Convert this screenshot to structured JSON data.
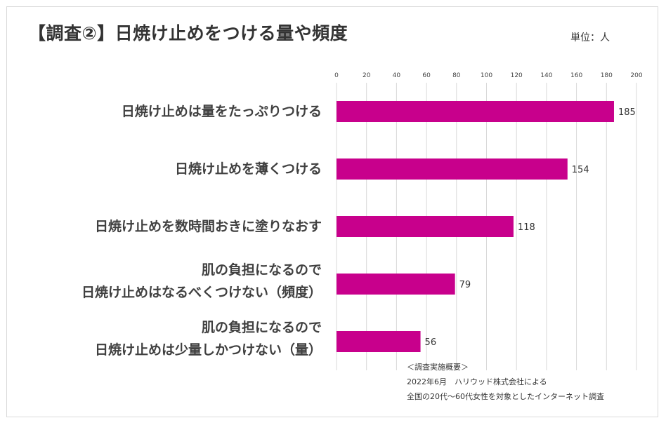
{
  "title": "【調査②】日焼け止めをつける量や頻度",
  "unit_label": "単位：人",
  "colors": {
    "bar": "#c8008c",
    "grid": "#d9d9d9",
    "text": "#404040"
  },
  "chart_data": {
    "type": "bar",
    "orientation": "horizontal",
    "title": "【調査②】日焼け止めをつける量や頻度",
    "xlim": [
      0,
      200
    ],
    "x_ticks": [
      0,
      20,
      40,
      60,
      80,
      100,
      120,
      140,
      160,
      180,
      200
    ],
    "x_axis_position": "top",
    "grid": true,
    "categories": [
      [
        "日焼け止めは量をたっぷりつける"
      ],
      [
        "日焼け止めを薄くつける"
      ],
      [
        "日焼け止めを数時間おきに塗りなおす"
      ],
      [
        "肌の負担になるので",
        "日焼け止めはなるべくつけない（頻度）"
      ],
      [
        "肌の負担になるので",
        "日焼け止めは少量しかつけない（量）"
      ]
    ],
    "values": [
      185,
      154,
      118,
      79,
      56
    ]
  },
  "notes": {
    "heading": "＜調査実施概要＞",
    "line1": "2022年6月　ハリウッド株式会社による",
    "line2": "全国の20代～60代女性を対象としたインターネット調査"
  }
}
